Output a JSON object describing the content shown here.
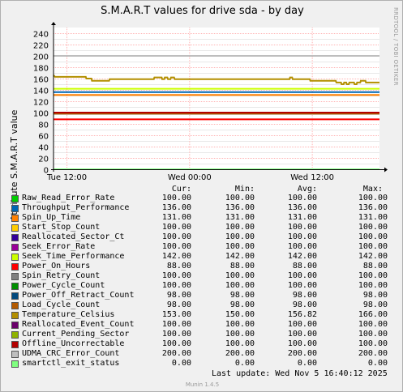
{
  "title": "S.M.A.R.T values for drive sda - by day",
  "vendor_text": "RRDTOOL / TOBI OETIKER",
  "ylabel": "Attribute S.M.A.R.T value",
  "headers": {
    "cur": "Cur:",
    "min": "Min:",
    "avg": "Avg:",
    "max": "Max:"
  },
  "footer": {
    "last_update": "Last update:  Wed Nov  5 16:40:12 2025",
    "munin": "Munin 1.4.5"
  },
  "chart_data": {
    "type": "line",
    "title": "S.M.A.R.T values for drive sda - by day",
    "ylabel": "Attribute S.M.A.R.T value",
    "xlabel": "",
    "ylim": [
      0,
      250
    ],
    "yticks": [
      0,
      20,
      40,
      60,
      80,
      100,
      120,
      140,
      160,
      180,
      200,
      220,
      240
    ],
    "xlim": [
      "Tue 09:30",
      "Wed 16:40"
    ],
    "xticks": [
      {
        "t": "Tue 12:00",
        "label": "Tue 12:00"
      },
      {
        "t": "Wed 00:00",
        "label": "Wed 00:00"
      },
      {
        "t": "Wed 12:00",
        "label": "Wed 12:00"
      }
    ],
    "grid": true,
    "series": [
      {
        "name": "Raw_Read_Error_Rate",
        "color": "#00cc00",
        "cur": "100.00",
        "min": "100.00",
        "avg": "100.00",
        "max": "100.00",
        "values": [
          [
            0,
            100
          ],
          [
            31.2,
            100
          ]
        ]
      },
      {
        "name": "Throughput_Performance",
        "color": "#0066b3",
        "cur": "136.00",
        "min": "136.00",
        "avg": "136.00",
        "max": "136.00",
        "values": [
          [
            0,
            136
          ],
          [
            31.2,
            136
          ]
        ]
      },
      {
        "name": "Spin_Up_Time",
        "color": "#ff8000",
        "cur": "131.00",
        "min": "131.00",
        "avg": "131.00",
        "max": "131.00",
        "values": [
          [
            0,
            131
          ],
          [
            31.2,
            131
          ]
        ]
      },
      {
        "name": "Start_Stop_Count",
        "color": "#ffcc00",
        "cur": "100.00",
        "min": "100.00",
        "avg": "100.00",
        "max": "100.00",
        "values": [
          [
            0,
            100
          ],
          [
            31.2,
            100
          ]
        ]
      },
      {
        "name": "Reallocated_Sector_Ct",
        "color": "#330099",
        "cur": "100.00",
        "min": "100.00",
        "avg": "100.00",
        "max": "100.00",
        "values": [
          [
            0,
            100
          ],
          [
            31.2,
            100
          ]
        ]
      },
      {
        "name": "Seek_Error_Rate",
        "color": "#990099",
        "cur": "100.00",
        "min": "100.00",
        "avg": "100.00",
        "max": "100.00",
        "values": [
          [
            0,
            100
          ],
          [
            31.2,
            100
          ]
        ]
      },
      {
        "name": "Seek_Time_Performance",
        "color": "#ccff00",
        "cur": "142.00",
        "min": "142.00",
        "avg": "142.00",
        "max": "142.00",
        "values": [
          [
            0,
            142
          ],
          [
            31.2,
            142
          ]
        ]
      },
      {
        "name": "Power_On_Hours",
        "color": "#ff0000",
        "cur": "88.00",
        "min": "88.00",
        "avg": "88.00",
        "max": "88.00",
        "values": [
          [
            0,
            88
          ],
          [
            31.2,
            88
          ]
        ]
      },
      {
        "name": "Spin_Retry_Count",
        "color": "#808080",
        "cur": "100.00",
        "min": "100.00",
        "avg": "100.00",
        "max": "100.00",
        "values": [
          [
            0,
            100
          ],
          [
            31.2,
            100
          ]
        ]
      },
      {
        "name": "Power_Cycle_Count",
        "color": "#008f00",
        "cur": "100.00",
        "min": "100.00",
        "avg": "100.00",
        "max": "100.00",
        "values": [
          [
            0,
            100
          ],
          [
            31.2,
            100
          ]
        ]
      },
      {
        "name": "Power_Off_Retract_Count",
        "color": "#00487d",
        "cur": "98.00",
        "min": "98.00",
        "avg": "98.00",
        "max": "98.00",
        "values": [
          [
            0,
            98
          ],
          [
            31.2,
            98
          ]
        ]
      },
      {
        "name": "Load_Cycle_Count",
        "color": "#b35a00",
        "cur": "98.00",
        "min": "98.00",
        "avg": "98.00",
        "max": "98.00",
        "values": [
          [
            0,
            98
          ],
          [
            31.2,
            98
          ]
        ]
      },
      {
        "name": "Temperature_Celsius",
        "color": "#b38f00",
        "cur": "153.00",
        "min": "150.00",
        "avg": "156.82",
        "max": "166.00",
        "values": [
          [
            0,
            166
          ],
          [
            0.3,
            163
          ],
          [
            6.2,
            163
          ],
          [
            6.3,
            160
          ],
          [
            7.3,
            160
          ],
          [
            7.4,
            156
          ],
          [
            10.7,
            156
          ],
          [
            10.8,
            159
          ],
          [
            19.3,
            159
          ],
          [
            19.4,
            162
          ],
          [
            20.8,
            162
          ],
          [
            20.9,
            159
          ],
          [
            21.3,
            159
          ],
          [
            21.4,
            162
          ],
          [
            21.9,
            162
          ],
          [
            22,
            159
          ],
          [
            22.5,
            159
          ],
          [
            22.6,
            162
          ],
          [
            23.2,
            162
          ],
          [
            23.3,
            159
          ],
          [
            45.4,
            159
          ],
          [
            45.5,
            162
          ],
          [
            45.9,
            162
          ],
          [
            46,
            159
          ],
          [
            49.3,
            159
          ],
          [
            49.4,
            156
          ],
          [
            54.3,
            156
          ],
          [
            54.4,
            153
          ],
          [
            55.3,
            153
          ],
          [
            55.4,
            150
          ],
          [
            55.8,
            150
          ],
          [
            55.9,
            153
          ],
          [
            56.3,
            153
          ],
          [
            56.4,
            150
          ],
          [
            56.8,
            150
          ],
          [
            56.9,
            153
          ],
          [
            57.8,
            153
          ],
          [
            57.9,
            150
          ],
          [
            58.3,
            150
          ],
          [
            58.4,
            153
          ],
          [
            59,
            153
          ],
          [
            59.1,
            156
          ],
          [
            60,
            156
          ],
          [
            60.1,
            153
          ],
          [
            62.7,
            153
          ]
        ]
      },
      {
        "name": "Reallocated_Event_Count",
        "color": "#6b006b",
        "cur": "100.00",
        "min": "100.00",
        "avg": "100.00",
        "max": "100.00",
        "values": [
          [
            0,
            100
          ],
          [
            31.2,
            100
          ]
        ]
      },
      {
        "name": "Current_Pending_Sector",
        "color": "#8fb300",
        "cur": "100.00",
        "min": "100.00",
        "avg": "100.00",
        "max": "100.00",
        "values": [
          [
            0,
            100
          ],
          [
            31.2,
            100
          ]
        ]
      },
      {
        "name": "Offline_Uncorrectable",
        "color": "#b30000",
        "cur": "100.00",
        "min": "100.00",
        "avg": "100.00",
        "max": "100.00",
        "values": [
          [
            0,
            100
          ],
          [
            31.2,
            100
          ]
        ]
      },
      {
        "name": "UDMA_CRC_Error_Count",
        "color": "#bebebe",
        "cur": "200.00",
        "min": "200.00",
        "avg": "200.00",
        "max": "200.00",
        "values": [
          [
            0,
            200
          ],
          [
            31.2,
            200
          ]
        ]
      },
      {
        "name": "smartctl_exit_status",
        "color": "#80ff80",
        "cur": "0.00",
        "min": "0.00",
        "avg": "0.00",
        "max": "0.00",
        "values": [
          [
            0,
            0
          ],
          [
            31.2,
            0
          ]
        ]
      }
    ]
  }
}
